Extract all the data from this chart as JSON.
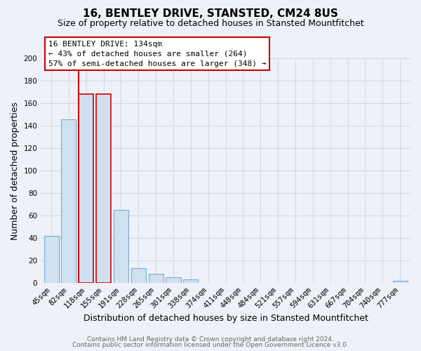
{
  "title": "16, BENTLEY DRIVE, STANSTED, CM24 8US",
  "subtitle": "Size of property relative to detached houses in Stansted Mountfitchet",
  "xlabel": "Distribution of detached houses by size in Stansted Mountfitchet",
  "ylabel": "Number of detached properties",
  "bar_labels": [
    "45sqm",
    "82sqm",
    "118sqm",
    "155sqm",
    "191sqm",
    "228sqm",
    "265sqm",
    "301sqm",
    "338sqm",
    "374sqm",
    "411sqm",
    "448sqm",
    "484sqm",
    "521sqm",
    "557sqm",
    "594sqm",
    "631sqm",
    "667sqm",
    "704sqm",
    "740sqm",
    "777sqm"
  ],
  "bar_values": [
    42,
    146,
    168,
    168,
    65,
    13,
    8,
    5,
    3,
    0,
    0,
    0,
    0,
    0,
    0,
    0,
    0,
    0,
    0,
    0,
    2
  ],
  "bar_color": "#cfe0f0",
  "bar_edge_color": "#7aaccf",
  "highlight_bar_indices": [
    2,
    3
  ],
  "highlight_edge_color": "#cc0000",
  "vline_bar_index": 2,
  "vline_color": "#cc0000",
  "annotation_title": "16 BENTLEY DRIVE: 134sqm",
  "annotation_line1": "← 43% of detached houses are smaller (264)",
  "annotation_line2": "57% of semi-detached houses are larger (348) →",
  "annotation_box_color": "white",
  "annotation_box_edge_color": "#cc0000",
  "ylim": [
    0,
    200
  ],
  "yticks": [
    0,
    20,
    40,
    60,
    80,
    100,
    120,
    140,
    160,
    180,
    200
  ],
  "footer1": "Contains HM Land Registry data © Crown copyright and database right 2024.",
  "footer2": "Contains public sector information licensed under the Open Government Licence v3.0.",
  "background_color": "#eef2f8",
  "grid_color": "#d0d8e8",
  "title_fontsize": 11,
  "subtitle_fontsize": 9,
  "tick_fontsize": 7.5,
  "xlabel_fontsize": 9,
  "ylabel_fontsize": 9,
  "annotation_fontsize": 8,
  "footer_fontsize": 6.5
}
